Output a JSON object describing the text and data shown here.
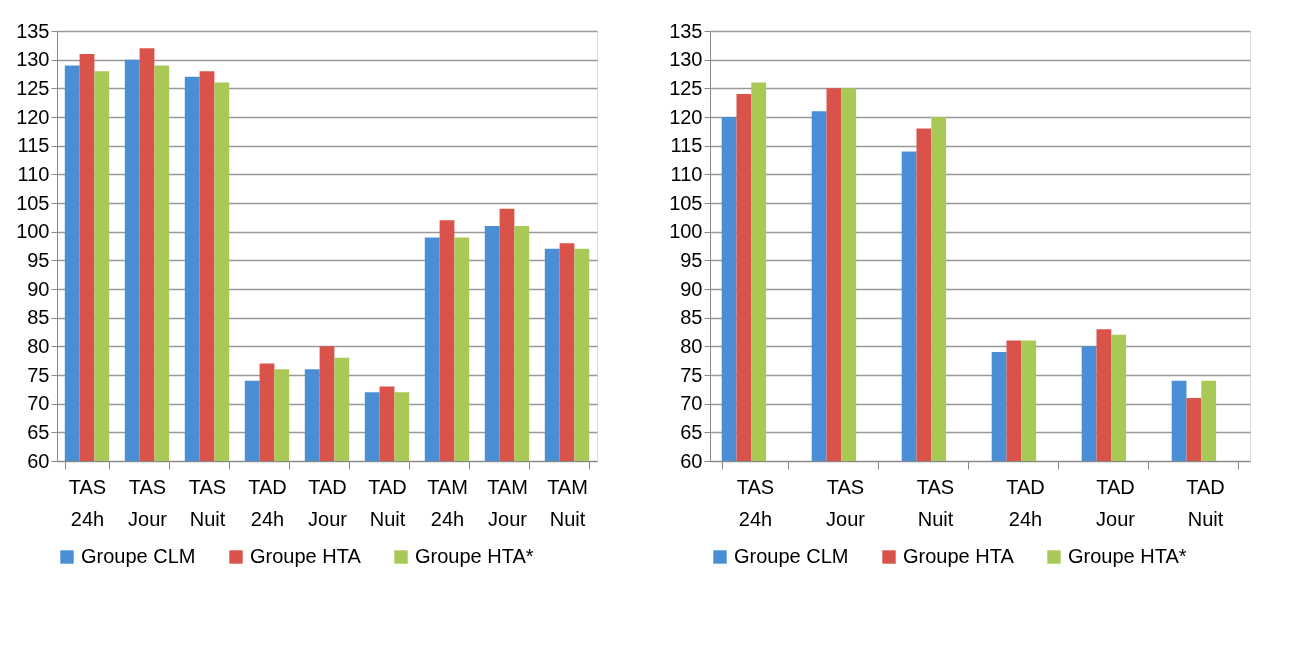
{
  "chart_data": [
    {
      "type": "bar",
      "categories": [
        "TAS 24h",
        "TAS Jour",
        "TAS Nuit",
        "TAD 24h",
        "TAD Jour",
        "TAD Nuit",
        "TAM 24h",
        "TAM Jour",
        "TAM Nuit"
      ],
      "series": [
        {
          "name": "Groupe CLM",
          "color": "#4a8fd6",
          "values": [
            129,
            130,
            127,
            74,
            76,
            72,
            99,
            101,
            97
          ]
        },
        {
          "name": "Groupe HTA",
          "color": "#d9534a",
          "values": [
            131,
            132,
            128,
            77,
            80,
            73,
            102,
            104,
            98
          ]
        },
        {
          "name": "Groupe HTA*",
          "color": "#a9c957",
          "values": [
            128,
            129,
            126,
            76,
            78,
            72,
            99,
            101,
            97
          ]
        }
      ],
      "ylim": [
        60,
        135
      ],
      "yticks": [
        60,
        65,
        70,
        75,
        80,
        85,
        90,
        95,
        100,
        105,
        110,
        115,
        120,
        125,
        130,
        135
      ],
      "grid": "y",
      "legend": "bottom"
    },
    {
      "type": "bar",
      "categories": [
        "TAS 24h",
        "TAS Jour",
        "TAS Nuit",
        "TAD 24h",
        "TAD Jour",
        "TAD Nuit"
      ],
      "series": [
        {
          "name": "Groupe CLM",
          "color": "#4a8fd6",
          "values": [
            120,
            121,
            114,
            79,
            80,
            74
          ]
        },
        {
          "name": "Groupe HTA",
          "color": "#d9534a",
          "values": [
            124,
            125,
            118,
            81,
            83,
            71
          ]
        },
        {
          "name": "Groupe HTA*",
          "color": "#a9c957",
          "values": [
            126,
            125,
            120,
            81,
            82,
            74
          ]
        }
      ],
      "ylim": [
        60,
        135
      ],
      "yticks": [
        60,
        65,
        70,
        75,
        80,
        85,
        90,
        95,
        100,
        105,
        110,
        115,
        120,
        125,
        130,
        135
      ],
      "grid": "y",
      "legend": "bottom"
    }
  ]
}
